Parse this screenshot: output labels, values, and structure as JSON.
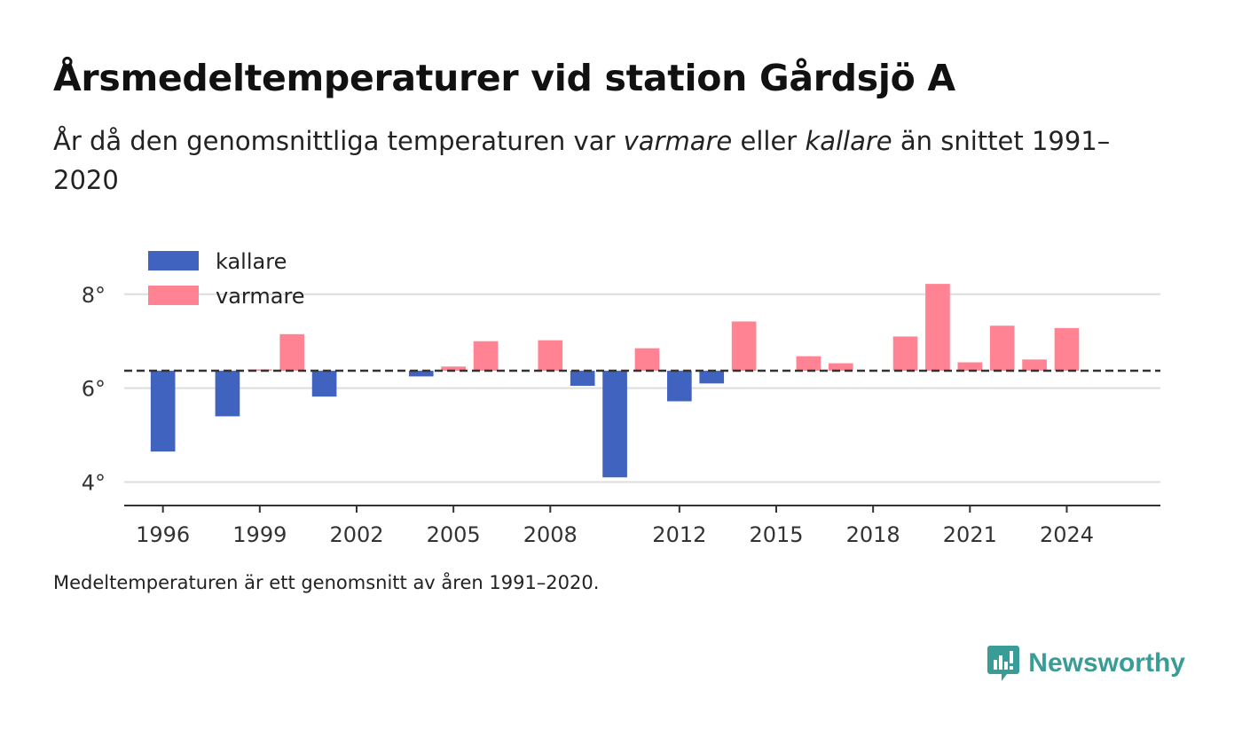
{
  "header": {
    "title": "Årsmedeltemperaturer vid station Gårdsjö A",
    "subtitle_pre": "År då den genomsnittliga temperaturen var ",
    "subtitle_warm": "varmare",
    "subtitle_mid": " eller ",
    "subtitle_cold": "kallare",
    "subtitle_post": " än snittet 1991–2020"
  },
  "footer": {
    "note": "Medeltemperaturen är ett genomsnitt av åren 1991–2020.",
    "brand": "Newsworthy"
  },
  "colors": {
    "colder": "#4063c0",
    "warmer": "#ff8393",
    "baseline": "#333333",
    "grid": "#dddddd",
    "brand": "#3a9c96"
  },
  "chart_data": {
    "type": "bar",
    "baseline": 6.37,
    "baseline_style": "dashed",
    "ylim": [
      3.5,
      8.6
    ],
    "xlim": [
      1994.8,
      2026.9
    ],
    "y_ticks": [
      {
        "value": 4,
        "label": "4°"
      },
      {
        "value": 6,
        "label": "6°"
      },
      {
        "value": 8,
        "label": "8°"
      }
    ],
    "x_ticks": [
      1996,
      1999,
      2002,
      2005,
      2008,
      2012,
      2015,
      2018,
      2021,
      2024
    ],
    "grid": true,
    "legend": {
      "position": "top-left",
      "entries": [
        {
          "label": "kallare",
          "color": "#4063c0"
        },
        {
          "label": "varmare",
          "color": "#ff8393"
        }
      ]
    },
    "series": [
      {
        "name": "kallare",
        "color": "#4063c0",
        "points": [
          {
            "x": 1996,
            "y": 4.65
          },
          {
            "x": 1998,
            "y": 5.4
          },
          {
            "x": 2001,
            "y": 5.82
          },
          {
            "x": 2004,
            "y": 6.25
          },
          {
            "x": 2009,
            "y": 6.05
          },
          {
            "x": 2010,
            "y": 4.1
          },
          {
            "x": 2012,
            "y": 5.72
          },
          {
            "x": 2013,
            "y": 6.1
          }
        ]
      },
      {
        "name": "varmare",
        "color": "#ff8393",
        "points": [
          {
            "x": 1999,
            "y": 6.4
          },
          {
            "x": 2000,
            "y": 7.15
          },
          {
            "x": 2005,
            "y": 6.46
          },
          {
            "x": 2006,
            "y": 7.0
          },
          {
            "x": 2008,
            "y": 7.02
          },
          {
            "x": 2011,
            "y": 6.85
          },
          {
            "x": 2014,
            "y": 7.42
          },
          {
            "x": 2016,
            "y": 6.68
          },
          {
            "x": 2017,
            "y": 6.53
          },
          {
            "x": 2019,
            "y": 7.1
          },
          {
            "x": 2020,
            "y": 8.22
          },
          {
            "x": 2021,
            "y": 6.55
          },
          {
            "x": 2022,
            "y": 7.33
          },
          {
            "x": 2023,
            "y": 6.61
          },
          {
            "x": 2024,
            "y": 7.28
          }
        ]
      }
    ]
  }
}
